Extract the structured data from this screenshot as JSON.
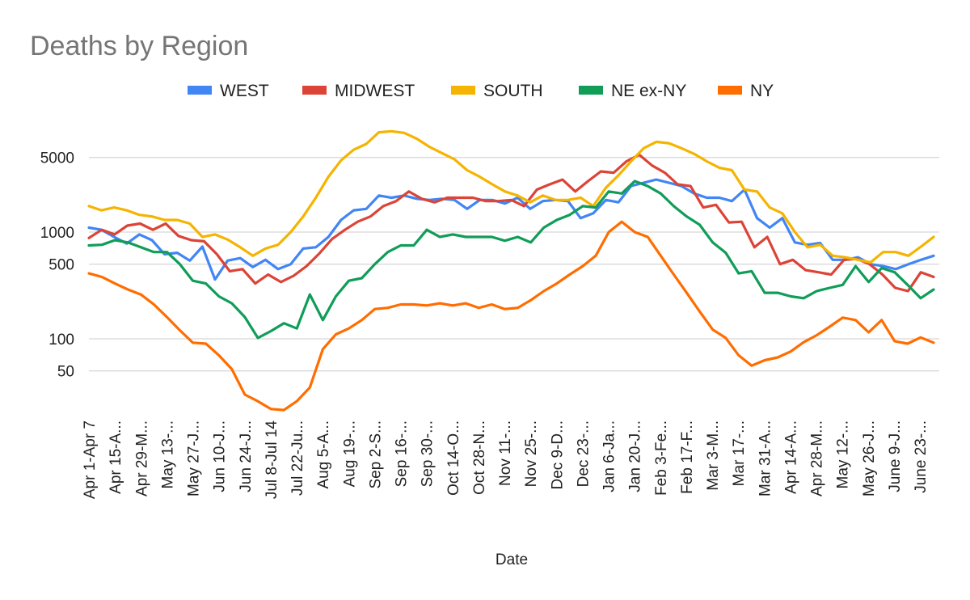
{
  "chart_data": {
    "type": "line",
    "title": "Deaths by Region",
    "xlabel": "Date",
    "ylabel": "",
    "y_scale": "log",
    "ylim": [
      15,
      10000
    ],
    "y_ticks": [
      50,
      100,
      500,
      1000,
      5000
    ],
    "grid": true,
    "legend_position": "top",
    "x_tick_labels": [
      "Apr 1-Apr 7",
      "Apr 15-A...",
      "Apr 29-M...",
      "May 13-...",
      "May 27-J...",
      "Jun 10-J...",
      "Jun 24-J...",
      "Jul 8-Jul 14",
      "Jul 22-Ju...",
      "Aug 5-A...",
      "Aug 19-...",
      "Sep 2-S...",
      "Sep 16-...",
      "Sep 30-...",
      "Oct 14-O...",
      "Oct 28-N...",
      "Nov 11-...",
      "Nov 25-...",
      "Dec 9-D...",
      "Dec 23-...",
      "Jan 6-Ja...",
      "Jan 20-J...",
      "Feb 3-Fe...",
      "Feb 17-F...",
      "Mar 3-M...",
      "Mar 17-...",
      "Mar 31-A...",
      "Apr 14-A...",
      "Apr 28-M...",
      "May 12-...",
      "May 26-J...",
      "June 9-J...",
      "June 23-..."
    ],
    "series": [
      {
        "name": "WEST",
        "color": "#4285f4",
        "values": [
          1100,
          1050,
          900,
          780,
          950,
          840,
          620,
          640,
          540,
          730,
          360,
          540,
          570,
          470,
          550,
          450,
          500,
          700,
          720,
          900,
          1300,
          1600,
          1650,
          2200,
          2100,
          2200,
          2050,
          2000,
          2050,
          2000,
          1650,
          2000,
          2000,
          1850,
          2100,
          1650,
          1950,
          2000,
          1950,
          1350,
          1500,
          2000,
          1900,
          2700,
          2900,
          3100,
          2900,
          2700,
          2300,
          2100,
          2100,
          1950,
          2500,
          1350,
          1100,
          1350,
          800,
          760,
          790,
          550,
          550,
          580,
          500,
          480,
          450,
          500,
          550,
          600
        ]
      },
      {
        "name": "MIDWEST",
        "color": "#db4437",
        "values": [
          880,
          1050,
          950,
          1150,
          1200,
          1050,
          1200,
          920,
          840,
          820,
          620,
          430,
          450,
          330,
          400,
          340,
          390,
          480,
          630,
          860,
          1050,
          1250,
          1400,
          1750,
          1950,
          2400,
          2050,
          1900,
          2100,
          2100,
          2100,
          1950,
          1950,
          2000,
          1750,
          2500,
          2800,
          3100,
          2400,
          3000,
          3700,
          3600,
          4600,
          5300,
          4200,
          3600,
          2800,
          2700,
          1700,
          1800,
          1230,
          1250,
          720,
          900,
          500,
          550,
          440,
          420,
          400,
          550,
          560,
          500,
          400,
          300,
          280,
          420,
          380
        ]
      },
      {
        "name": "SOUTH",
        "color": "#f4b400",
        "values": [
          1750,
          1600,
          1700,
          1600,
          1450,
          1400,
          1300,
          1300,
          1200,
          900,
          950,
          850,
          720,
          600,
          700,
          760,
          1000,
          1400,
          2100,
          3300,
          4700,
          5900,
          6700,
          8600,
          8800,
          8500,
          7500,
          6300,
          5500,
          4800,
          3800,
          3300,
          2800,
          2400,
          2200,
          1900,
          2200,
          2000,
          2000,
          2100,
          1750,
          2600,
          3400,
          4600,
          6100,
          7000,
          6800,
          6100,
          5400,
          4600,
          4000,
          3800,
          2500,
          2400,
          1700,
          1500,
          1000,
          720,
          760,
          600,
          580,
          550,
          520,
          650,
          650,
          600,
          730,
          900
        ]
      },
      {
        "name": "NE ex-NY",
        "color": "#0f9d58",
        "values": [
          750,
          760,
          840,
          800,
          720,
          650,
          650,
          500,
          350,
          330,
          250,
          215,
          160,
          102,
          118,
          140,
          125,
          260,
          150,
          250,
          350,
          370,
          500,
          650,
          750,
          750,
          1050,
          900,
          950,
          900,
          900,
          900,
          830,
          900,
          800,
          1100,
          1300,
          1450,
          1750,
          1700,
          2400,
          2300,
          3000,
          2700,
          2300,
          1750,
          1400,
          1170,
          800,
          640,
          410,
          430,
          270,
          270,
          250,
          240,
          280,
          300,
          320,
          480,
          340,
          460,
          420,
          320,
          240,
          290
        ]
      },
      {
        "name": "NY",
        "color": "#ff6d00",
        "values": [
          410,
          380,
          330,
          290,
          260,
          210,
          160,
          120,
          92,
          90,
          70,
          52,
          30,
          26,
          22,
          21.5,
          26,
          35,
          80,
          110,
          125,
          150,
          190,
          195,
          210,
          210,
          205,
          215,
          205,
          215,
          195,
          210,
          190,
          195,
          230,
          280,
          330,
          400,
          480,
          600,
          1000,
          1250,
          1000,
          900,
          600,
          400,
          270,
          180,
          122,
          102,
          70,
          56,
          63,
          67,
          76,
          93,
          108,
          130,
          158,
          150,
          115,
          150,
          95,
          90,
          103,
          92
        ]
      }
    ]
  }
}
